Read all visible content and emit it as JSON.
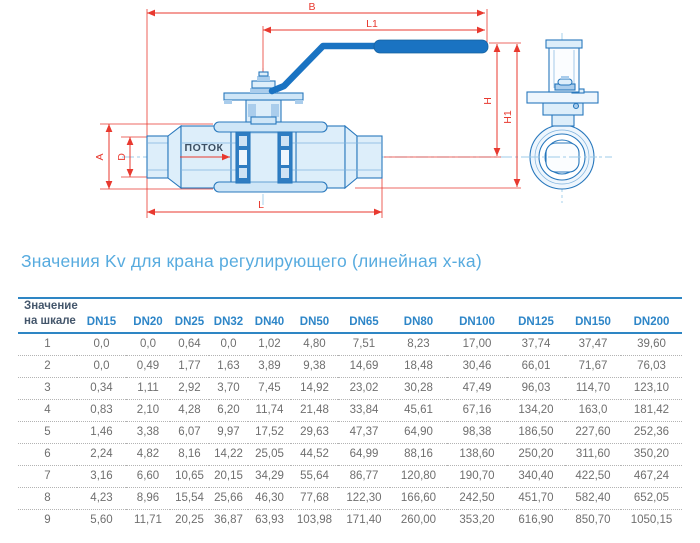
{
  "title": "Значения Kv для крана регулирующего (линейная х-ка)",
  "diagram": {
    "labels": {
      "B": "B",
      "L1": "L1",
      "L": "L",
      "A": "A",
      "D": "D",
      "H": "H",
      "H1": "H1"
    },
    "flow_label": "ПОТОК",
    "colors": {
      "dimension_red": "#e8392f",
      "valve_outline": "#2878bd",
      "valve_fill_light": "#ddeefa",
      "valve_fill_dark": "#2f7dc2",
      "handle_blue": "#1a73c2",
      "centerline_blue": "#9ccbe9"
    }
  },
  "table": {
    "corner_header_line1": "Значение",
    "corner_header_line2": "на шкале",
    "dn_headers": [
      "DN15",
      "DN20",
      "DN25",
      "DN32",
      "DN40",
      "DN50",
      "DN65",
      "DN80",
      "DN100",
      "DN125",
      "DN150",
      "DN200"
    ],
    "rows": [
      {
        "scale": "1",
        "values": [
          "0,0",
          "0,0",
          "0,64",
          "0,0",
          "1,02",
          "4,80",
          "7,51",
          "8,23",
          "17,00",
          "37,74",
          "37,47",
          "39,60"
        ]
      },
      {
        "scale": "2",
        "values": [
          "0,0",
          "0,49",
          "1,77",
          "1,63",
          "3,89",
          "9,38",
          "14,69",
          "18,48",
          "30,46",
          "66,01",
          "71,67",
          "76,03"
        ]
      },
      {
        "scale": "3",
        "values": [
          "0,34",
          "1,11",
          "2,92",
          "3,70",
          "7,45",
          "14,92",
          "23,02",
          "30,28",
          "47,49",
          "96,03",
          "114,70",
          "123,10"
        ]
      },
      {
        "scale": "4",
        "values": [
          "0,83",
          "2,10",
          "4,28",
          "6,20",
          "11,74",
          "21,48",
          "33,84",
          "45,61",
          "67,16",
          "134,20",
          "163,0",
          "181,42"
        ]
      },
      {
        "scale": "5",
        "values": [
          "1,46",
          "3,38",
          "6,07",
          "9,97",
          "17,52",
          "29,63",
          "47,37",
          "64,90",
          "98,38",
          "186,50",
          "227,60",
          "252,36"
        ]
      },
      {
        "scale": "6",
        "values": [
          "2,24",
          "4,82",
          "8,16",
          "14,22",
          "25,05",
          "44,52",
          "64,99",
          "88,16",
          "138,60",
          "250,20",
          "311,60",
          "350,20"
        ]
      },
      {
        "scale": "7",
        "values": [
          "3,16",
          "6,60",
          "10,65",
          "20,15",
          "34,29",
          "55,64",
          "86,77",
          "120,80",
          "190,70",
          "340,40",
          "422,50",
          "467,24"
        ]
      },
      {
        "scale": "8",
        "values": [
          "4,23",
          "8,96",
          "15,54",
          "25,66",
          "46,30",
          "77,68",
          "122,30",
          "166,60",
          "242,50",
          "451,70",
          "582,40",
          "652,05"
        ]
      },
      {
        "scale": "9",
        "values": [
          "5,60",
          "11,71",
          "20,25",
          "36,87",
          "63,93",
          "103,98",
          "171,40",
          "260,00",
          "353,20",
          "616,90",
          "850,70",
          "1050,15"
        ]
      }
    ],
    "colors": {
      "rule_blue": "#2e86c4",
      "dn_header_blue": "#2e86c8",
      "corner_header_dark": "#44566b",
      "value_gray": "#6f6f6f"
    }
  }
}
